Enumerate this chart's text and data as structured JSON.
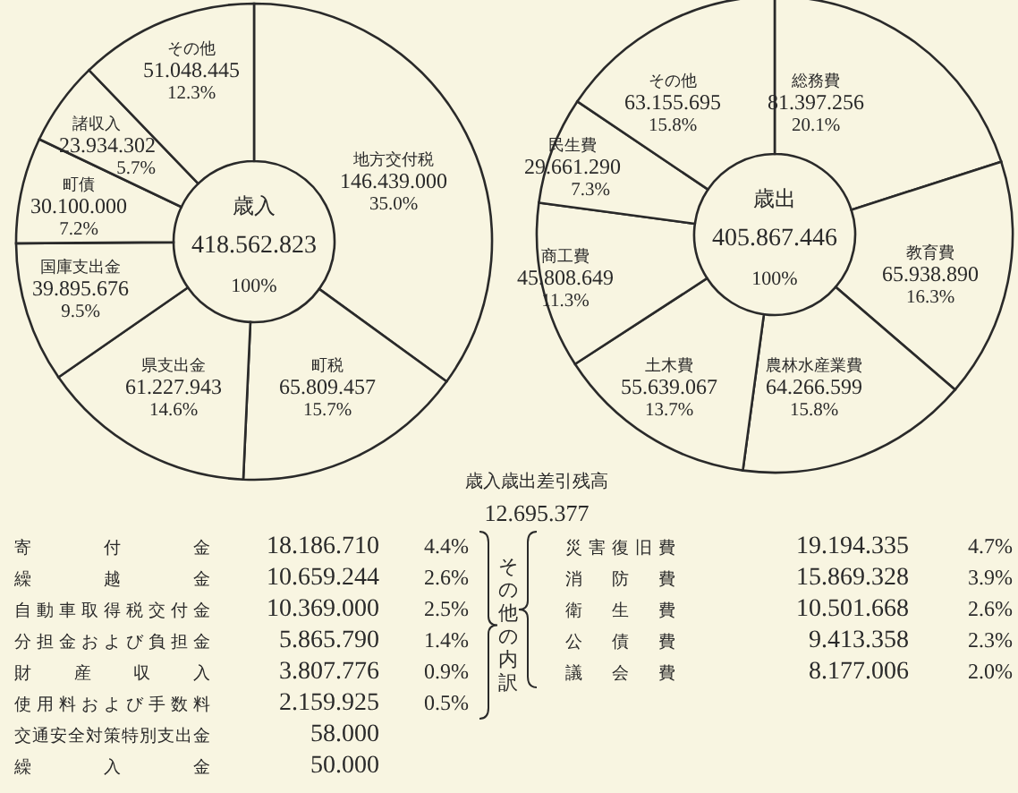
{
  "chart_data": [
    {
      "type": "donut",
      "title": "歳入",
      "annotations": [
        "418.562.823",
        "100%"
      ],
      "categories": [
        "地方交付税",
        "町税",
        "県支出金",
        "国庫支出金",
        "町債",
        "諸収入",
        "その他"
      ],
      "values": [
        146439000,
        65809457,
        61227943,
        39895676,
        30100000,
        23934302,
        51048445
      ],
      "value_labels": [
        "146.439.000\n35.0%",
        "65.809.457\n15.7%",
        "61.227.943\n14.6%",
        "39.895.676\n9.5%",
        "30.100.000\n7.2%",
        "23.934.302\n5.7%",
        "51.048.445\n12.3%"
      ],
      "colors": [
        "#f8f5e1",
        "#f8f5e1",
        "#f8f5e1",
        "#f8f5e1",
        "#f8f5e1",
        "#f8f5e1",
        "#f8f5e1"
      ]
    },
    {
      "type": "donut",
      "title": "歳出",
      "annotations": [
        "405.867.446",
        "100%"
      ],
      "categories": [
        "総務費",
        "教育費",
        "農林水産業費",
        "土木費",
        "商工費",
        "民生費",
        "その他"
      ],
      "values": [
        81397256,
        65938890,
        64266599,
        55639067,
        45808649,
        29661290,
        63155695
      ],
      "value_labels": [
        "81.397.256\n20.1%",
        "65.938.890\n16.3%",
        "64.266.599\n15.8%",
        "55.639.067\n13.7%",
        "45.808.649\n11.3%",
        "29.661.290\n7.3%",
        "63.155.695\n15.8%"
      ],
      "colors": [
        "#f8f5e1",
        "#f8f5e1",
        "#f8f5e1",
        "#f8f5e1",
        "#f8f5e1",
        "#f8f5e1",
        "#f8f5e1"
      ]
    },
    {
      "type": "other",
      "title": "歳入歳出差引残高",
      "subtitle": "12.695.377",
      "annotations": [
        "その他の内訳"
      ],
      "categories": [
        "寄付金",
        "繰越金",
        "自動車取得税交付金",
        "分担金および負担金",
        "財産収入",
        "使用料および手数料",
        "交通安全対策特別支出金",
        "繰入金"
      ],
      "value_labels": [
        "18.186.710\n4.4%",
        "10.659.244\n2.6%",
        "10.369.000\n2.5%",
        "5.865.790\n1.4%",
        "3.807.776\n0.9%",
        "2.159.925\n0.5%",
        "58.000",
        "50.000"
      ]
    },
    {
      "type": "other",
      "categories": [
        "災害復旧費",
        "消防費",
        "衛生費",
        "公債費",
        "議会費"
      ],
      "value_labels": [
        "19.194.335\n4.7%",
        "15.869.328\n3.9%",
        "10.501.668\n2.6%",
        "9.413.358\n2.3%",
        "8.177.006\n2.0%"
      ]
    }
  ]
}
